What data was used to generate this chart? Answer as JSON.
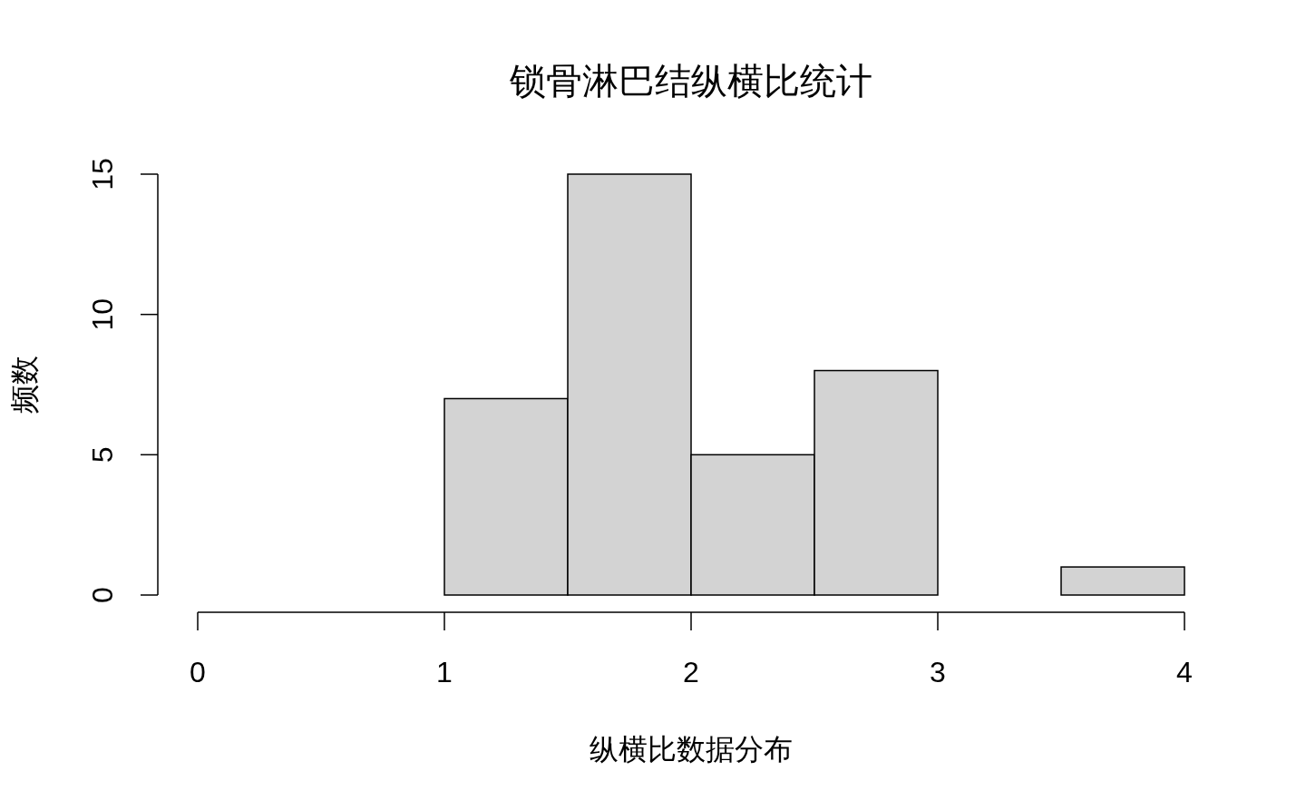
{
  "chart_data": {
    "type": "histogram",
    "title": "锁骨淋巴结纵横比统计",
    "xlabel": "纵横比数据分布",
    "ylabel": "频数",
    "bins": [
      0,
      0.5,
      1,
      1.5,
      2,
      2.5,
      3,
      3.5,
      4
    ],
    "values": [
      0,
      0,
      7,
      15,
      5,
      8,
      0,
      1
    ],
    "color": "#d3d3d3",
    "xlim": [
      0,
      4
    ],
    "ylim": [
      0,
      15
    ],
    "xticks": [
      0,
      1,
      2,
      3,
      4
    ],
    "yticks": [
      0,
      5,
      10,
      15
    ]
  }
}
